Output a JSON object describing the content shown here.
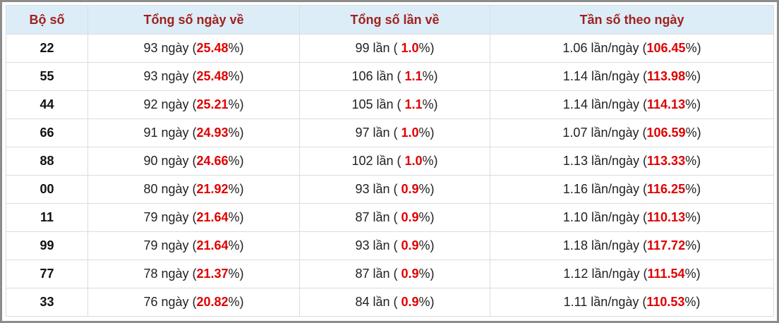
{
  "table": {
    "headers": [
      "Bộ số",
      "Tổng số ngày về",
      "Tổng số lần về",
      "Tần số theo ngày"
    ],
    "rows": [
      [
        "22",
        {
          "prefix": "93 ngày (",
          "highlight": "25.48",
          "suffix": "%)"
        },
        {
          "prefix": "99 lần ( ",
          "highlight": "1.0",
          "suffix": "%)"
        },
        {
          "prefix": "1.06 lần/ngày (",
          "highlight": "106.45",
          "suffix": "%)"
        }
      ],
      [
        "55",
        {
          "prefix": "93 ngày (",
          "highlight": "25.48",
          "suffix": "%)"
        },
        {
          "prefix": "106 lần ( ",
          "highlight": "1.1",
          "suffix": "%)"
        },
        {
          "prefix": "1.14 lần/ngày (",
          "highlight": "113.98",
          "suffix": "%)"
        }
      ],
      [
        "44",
        {
          "prefix": "92 ngày (",
          "highlight": "25.21",
          "suffix": "%)"
        },
        {
          "prefix": "105 lần ( ",
          "highlight": "1.1",
          "suffix": "%)"
        },
        {
          "prefix": "1.14 lần/ngày (",
          "highlight": "114.13",
          "suffix": "%)"
        }
      ],
      [
        "66",
        {
          "prefix": "91 ngày (",
          "highlight": "24.93",
          "suffix": "%)"
        },
        {
          "prefix": "97 lần ( ",
          "highlight": "1.0",
          "suffix": "%)"
        },
        {
          "prefix": "1.07 lần/ngày (",
          "highlight": "106.59",
          "suffix": "%)"
        }
      ],
      [
        "88",
        {
          "prefix": "90 ngày (",
          "highlight": "24.66",
          "suffix": "%)"
        },
        {
          "prefix": "102 lần ( ",
          "highlight": "1.0",
          "suffix": "%)"
        },
        {
          "prefix": "1.13 lần/ngày (",
          "highlight": "113.33",
          "suffix": "%)"
        }
      ],
      [
        "00",
        {
          "prefix": "80 ngày (",
          "highlight": "21.92",
          "suffix": "%)"
        },
        {
          "prefix": "93 lần ( ",
          "highlight": "0.9",
          "suffix": "%)"
        },
        {
          "prefix": "1.16 lần/ngày (",
          "highlight": "116.25",
          "suffix": "%)"
        }
      ],
      [
        "11",
        {
          "prefix": "79 ngày (",
          "highlight": "21.64",
          "suffix": "%)"
        },
        {
          "prefix": "87 lần ( ",
          "highlight": "0.9",
          "suffix": "%)"
        },
        {
          "prefix": "1.10 lần/ngày (",
          "highlight": "110.13",
          "suffix": "%)"
        }
      ],
      [
        "99",
        {
          "prefix": "79 ngày (",
          "highlight": "21.64",
          "suffix": "%)"
        },
        {
          "prefix": "93 lần ( ",
          "highlight": "0.9",
          "suffix": "%)"
        },
        {
          "prefix": "1.18 lần/ngày (",
          "highlight": "117.72",
          "suffix": "%)"
        }
      ],
      [
        "77",
        {
          "prefix": "78 ngày (",
          "highlight": "21.37",
          "suffix": "%)"
        },
        {
          "prefix": "87 lần ( ",
          "highlight": "0.9",
          "suffix": "%)"
        },
        {
          "prefix": "1.12 lần/ngày (",
          "highlight": "111.54",
          "suffix": "%)"
        }
      ],
      [
        "33",
        {
          "prefix": "76 ngày (",
          "highlight": "20.82",
          "suffix": "%)"
        },
        {
          "prefix": "84 lần ( ",
          "highlight": "0.9",
          "suffix": "%)"
        },
        {
          "prefix": "1.11 lần/ngày (",
          "highlight": "110.53",
          "suffix": "%)"
        }
      ]
    ]
  }
}
